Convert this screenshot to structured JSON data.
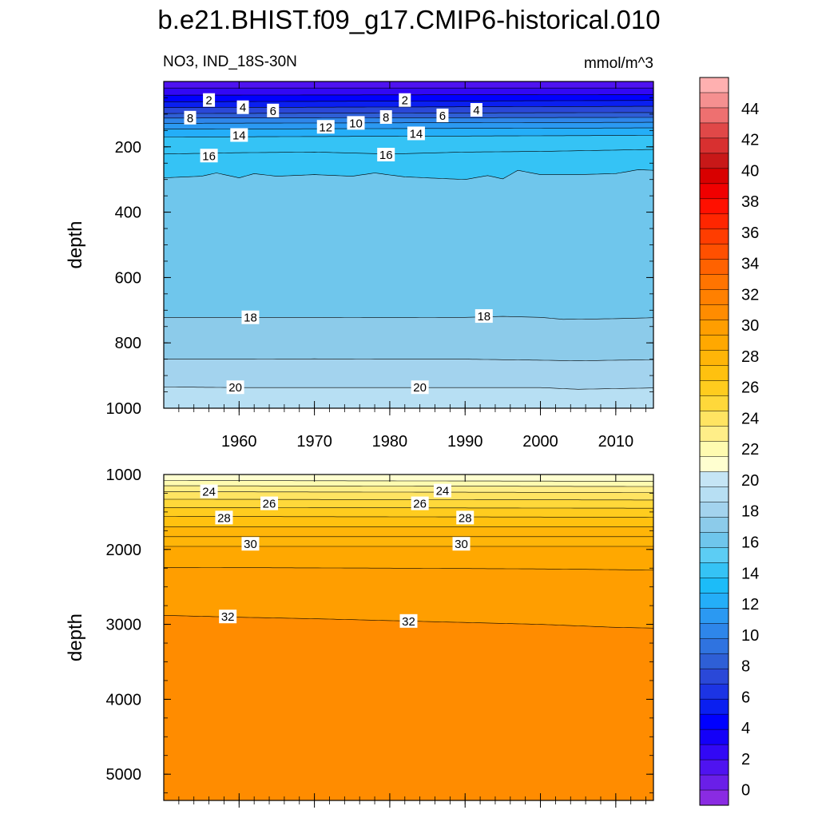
{
  "title": "b.e21.BHIST.f09_g17.CMIP6-historical.010",
  "chart_data": {
    "type": "heatmap",
    "title": "b.e21.BHIST.f09_g17.CMIP6-historical.010",
    "variable": "NO3, IND_18S-30N",
    "units": "mmol/m^3",
    "x": {
      "range": [
        1950,
        2015
      ],
      "ticks": [
        1960,
        1970,
        1980,
        1990,
        2000,
        2010
      ],
      "tick_labels": [
        "1960",
        "1970",
        "1980",
        "1990",
        "2000",
        "2010"
      ]
    },
    "panels": [
      {
        "name": "upper",
        "ylabel": "depth",
        "ylim": [
          0,
          1000
        ],
        "y_reversed": true,
        "yticks": [
          200,
          400,
          600,
          800,
          1000
        ],
        "ytick_labels": [
          "200",
          "400",
          "600",
          "800",
          "1000"
        ],
        "isolines": [
          {
            "level": 0,
            "depth": [
              [
                1950,
                20
              ],
              [
                2015,
                20
              ]
            ]
          },
          {
            "level": 2,
            "depth": [
              [
                1950,
                42
              ],
              [
                2015,
                40
              ]
            ]
          },
          {
            "level": 4,
            "depth": [
              [
                1950,
                62
              ],
              [
                2015,
                58
              ]
            ]
          },
          {
            "level": 6,
            "depth": [
              [
                1950,
                80
              ],
              [
                2015,
                76
              ]
            ]
          },
          {
            "level": 8,
            "depth": [
              [
                1950,
                98
              ],
              [
                2015,
                95
              ]
            ]
          },
          {
            "level": 10,
            "depth": [
              [
                1950,
                112
              ],
              [
                2015,
                110
              ]
            ]
          },
          {
            "level": 12,
            "depth": [
              [
                1950,
                128
              ],
              [
                2015,
                125
              ]
            ]
          },
          {
            "level": 14,
            "depth": [
              [
                1950,
                146
              ],
              [
                2015,
                142
              ]
            ]
          },
          {
            "level": 15,
            "depth": [
              [
                1950,
                170
              ],
              [
                2015,
                165
              ]
            ]
          },
          {
            "level": 16,
            "depth": [
              [
                1950,
                222
              ],
              [
                1960,
                218
              ],
              [
                1970,
                216
              ],
              [
                1980,
                222
              ],
              [
                1990,
                216
              ],
              [
                2000,
                214
              ],
              [
                2010,
                210
              ],
              [
                2015,
                208
              ]
            ]
          },
          {
            "level": 17,
            "depth": [
              [
                1950,
                295
              ],
              [
                1955,
                290
              ],
              [
                1957,
                280
              ],
              [
                1960,
                295
              ],
              [
                1962,
                282
              ],
              [
                1965,
                290
              ],
              [
                1970,
                285
              ],
              [
                1975,
                290
              ],
              [
                1978,
                280
              ],
              [
                1982,
                292
              ],
              [
                1990,
                300
              ],
              [
                1993,
                288
              ],
              [
                1995,
                298
              ],
              [
                1997,
                272
              ],
              [
                2000,
                285
              ],
              [
                2005,
                285
              ],
              [
                2010,
                282
              ],
              [
                2013,
                270
              ],
              [
                2015,
                272
              ]
            ]
          },
          {
            "level": 18,
            "depth": [
              [
                1950,
                722
              ],
              [
                1960,
                722
              ],
              [
                1970,
                722
              ],
              [
                1980,
                723
              ],
              [
                1990,
                722
              ],
              [
                1995,
                719
              ],
              [
                2000,
                722
              ],
              [
                2003,
                728
              ],
              [
                2007,
                727
              ],
              [
                2010,
                726
              ],
              [
                2015,
                723
              ]
            ]
          },
          {
            "level": 19,
            "depth": [
              [
                1950,
                850
              ],
              [
                1960,
                850
              ],
              [
                1970,
                849
              ],
              [
                1980,
                850
              ],
              [
                1990,
                850
              ],
              [
                2000,
                853
              ],
              [
                2005,
                855
              ],
              [
                2010,
                853
              ],
              [
                2015,
                852
              ]
            ]
          },
          {
            "level": 20,
            "depth": [
              [
                1950,
                935
              ],
              [
                1960,
                937
              ],
              [
                1970,
                937
              ],
              [
                1980,
                937
              ],
              [
                1990,
                937
              ],
              [
                2000,
                937
              ],
              [
                2005,
                942
              ],
              [
                2010,
                940
              ],
              [
                2015,
                938
              ]
            ]
          }
        ],
        "labels": [
          {
            "text": "2",
            "x": 1956,
            "depth": 58
          },
          {
            "text": "4",
            "x": 1960.5,
            "depth": 80
          },
          {
            "text": "6",
            "x": 1964.5,
            "depth": 90
          },
          {
            "text": "8",
            "x": 1953.5,
            "depth": 112
          },
          {
            "text": "14",
            "x": 1960,
            "depth": 165
          },
          {
            "text": "16",
            "x": 1956,
            "depth": 228
          },
          {
            "text": "12",
            "x": 1971.5,
            "depth": 140
          },
          {
            "text": "10",
            "x": 1975.5,
            "depth": 128
          },
          {
            "text": "8",
            "x": 1979.5,
            "depth": 110
          },
          {
            "text": "2",
            "x": 1982,
            "depth": 58
          },
          {
            "text": "16",
            "x": 1979.5,
            "depth": 225
          },
          {
            "text": "14",
            "x": 1983.5,
            "depth": 160
          },
          {
            "text": "6",
            "x": 1987,
            "depth": 105
          },
          {
            "text": "4",
            "x": 1991.5,
            "depth": 88
          },
          {
            "text": "18",
            "x": 1961.5,
            "depth": 723
          },
          {
            "text": "18",
            "x": 1992.5,
            "depth": 719
          },
          {
            "text": "20",
            "x": 1959.5,
            "depth": 937
          },
          {
            "text": "20",
            "x": 1984,
            "depth": 937
          }
        ]
      },
      {
        "name": "lower",
        "ylabel": "depth",
        "ylim": [
          1000,
          5350
        ],
        "y_reversed": true,
        "yticks": [
          1000,
          2000,
          3000,
          4000,
          5000
        ],
        "ytick_labels": [
          "1000",
          "2000",
          "3000",
          "4000",
          "5000"
        ],
        "isolines": [
          {
            "level": 22,
            "depth": [
              [
                1950,
                1080
              ],
              [
                2015,
                1090
              ]
            ]
          },
          {
            "level": 23,
            "depth": [
              [
                1950,
                1150
              ],
              [
                2015,
                1160
              ]
            ]
          },
          {
            "level": 24,
            "depth": [
              [
                1950,
                1230
              ],
              [
                2015,
                1240
              ]
            ]
          },
          {
            "level": 25,
            "depth": [
              [
                1950,
                1330
              ],
              [
                2015,
                1340
              ]
            ]
          },
          {
            "level": 26,
            "depth": [
              [
                1950,
                1440
              ],
              [
                2015,
                1450
              ]
            ]
          },
          {
            "level": 27,
            "depth": [
              [
                1950,
                1560
              ],
              [
                2015,
                1570
              ]
            ]
          },
          {
            "level": 28,
            "depth": [
              [
                1950,
                1700
              ],
              [
                2015,
                1700
              ]
            ]
          },
          {
            "level": 29,
            "depth": [
              [
                1950,
                1830
              ],
              [
                2015,
                1830
              ]
            ]
          },
          {
            "level": 30,
            "depth": [
              [
                1950,
                1960
              ],
              [
                2015,
                1960
              ]
            ]
          },
          {
            "level": 31,
            "depth": [
              [
                1950,
                2240
              ],
              [
                1980,
                2250
              ],
              [
                2000,
                2260
              ],
              [
                2015,
                2275
              ]
            ]
          },
          {
            "level": 32,
            "depth": [
              [
                1950,
                2880
              ],
              [
                1960,
                2905
              ],
              [
                1970,
                2925
              ],
              [
                1980,
                2950
              ],
              [
                1990,
                2975
              ],
              [
                2000,
                3000
              ],
              [
                2010,
                3040
              ],
              [
                2015,
                3050
              ]
            ]
          }
        ],
        "labels": [
          {
            "text": "24",
            "x": 1956,
            "depth": 1230
          },
          {
            "text": "26",
            "x": 1964,
            "depth": 1390
          },
          {
            "text": "28",
            "x": 1958,
            "depth": 1580
          },
          {
            "text": "30",
            "x": 1961.5,
            "depth": 1930
          },
          {
            "text": "32",
            "x": 1958.5,
            "depth": 2900
          },
          {
            "text": "24",
            "x": 1987,
            "depth": 1220
          },
          {
            "text": "26",
            "x": 1984,
            "depth": 1390
          },
          {
            "text": "28",
            "x": 1990,
            "depth": 1580
          },
          {
            "text": "30",
            "x": 1989.5,
            "depth": 1930
          },
          {
            "text": "32",
            "x": 1982.5,
            "depth": 2960
          }
        ]
      }
    ],
    "colorbar": {
      "min": -1,
      "max": 46,
      "step": 2,
      "tick_values": [
        0,
        2,
        4,
        6,
        8,
        10,
        12,
        14,
        16,
        18,
        20,
        22,
        24,
        26,
        28,
        30,
        32,
        34,
        36,
        38,
        40,
        42,
        44
      ],
      "tick_labels": [
        "0",
        "2",
        "4",
        "6",
        "8",
        "10",
        "12",
        "14",
        "16",
        "18",
        "20",
        "22",
        "24",
        "26",
        "28",
        "30",
        "32",
        "34",
        "36",
        "38",
        "40",
        "42",
        "44"
      ],
      "colors": [
        "#8a2be2",
        "#6a1fe8",
        "#4f13f0",
        "#3208f5",
        "#1400f8",
        "#0000ff",
        "#0a1ff0",
        "#1c34e4",
        "#2a48d8",
        "#2e5fd6",
        "#2f73e0",
        "#2e86ea",
        "#2b99f2",
        "#24aef8",
        "#1cbcf8",
        "#35c3f5",
        "#5ccdf4",
        "#6fc6ec",
        "#8ccbea",
        "#a3d3ee",
        "#b7dff3",
        "#c5e5f5",
        "#ffffd0",
        "#fffbb0",
        "#ffee88",
        "#ffe462",
        "#ffd83a",
        "#ffcc1e",
        "#ffc10f",
        "#ffb508",
        "#ffa800",
        "#ff9e00",
        "#ff8c00",
        "#ff8000",
        "#ff7400",
        "#ff6200",
        "#ff5000",
        "#ff3d00",
        "#ff2600",
        "#ff1000",
        "#f00000",
        "#d80000",
        "#c81818",
        "#d83030",
        "#e04848",
        "#ee7070",
        "#f59090",
        "#ffb0b0"
      ]
    }
  }
}
